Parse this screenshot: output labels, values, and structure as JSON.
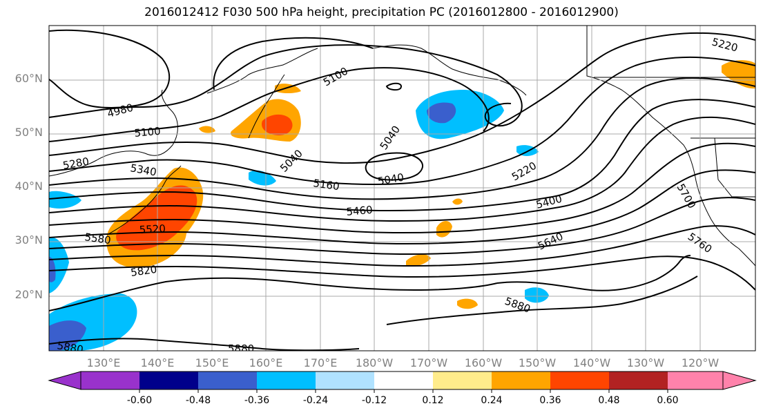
{
  "title": "2016012412 F030 500 hPa height, precipitation PC (2016012800 - 2016012900)",
  "colors": {
    "grid": "#a9a9a9",
    "contour": "#000000",
    "axis_label": "#808080"
  },
  "axes": {
    "lat_labels": [
      "60°N",
      "50°N",
      "40°N",
      "30°N",
      "20°N"
    ],
    "lon_labels": [
      "130°E",
      "140°E",
      "150°E",
      "160°E",
      "170°E",
      "180°W",
      "170°W",
      "160°W",
      "150°W",
      "140°W",
      "130°W",
      "120°W"
    ]
  },
  "contour_labels": [
    "5220",
    "5100",
    "4980",
    "5100",
    "5280",
    "5340",
    "5040",
    "5040",
    "5040",
    "5160",
    "5220",
    "5460",
    "5400",
    "5520",
    "5580",
    "5640",
    "5700",
    "5760",
    "5820",
    "5880",
    "5880",
    "5880"
  ],
  "colorbar": {
    "colors": [
      "#9932cc",
      "#00008b",
      "#3a5fcd",
      "#00bfff",
      "#b0e2ff",
      "#ffffff",
      "#ffec8b",
      "#ffa500",
      "#ff4500",
      "#b22222",
      "#ff82ab"
    ],
    "tick_labels": [
      "-0.60",
      "-0.48",
      "-0.36",
      "-0.24",
      "-0.12",
      "0.12",
      "0.24",
      "0.36",
      "0.48",
      "0.60"
    ]
  }
}
